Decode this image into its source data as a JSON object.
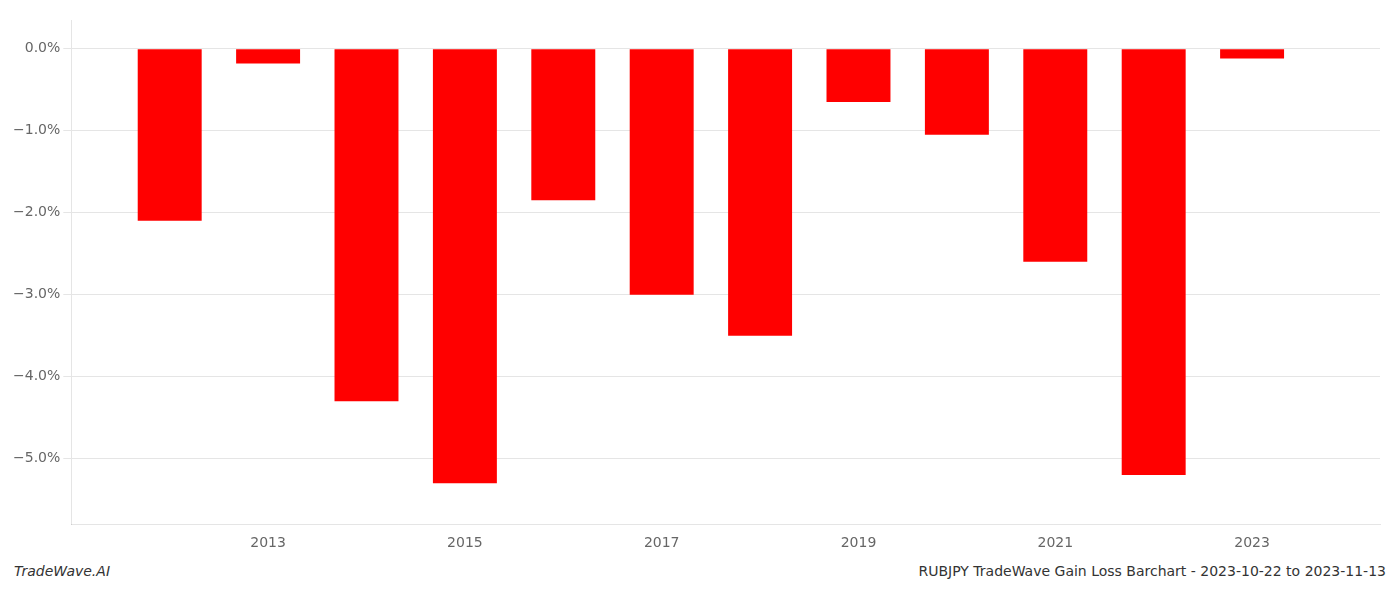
{
  "chart_data": {
    "type": "bar",
    "x": [
      2012,
      2013,
      2014,
      2015,
      2016,
      2017,
      2018,
      2019,
      2020,
      2021,
      2022,
      2023
    ],
    "values": [
      -2.1,
      -0.18,
      -4.3,
      -5.3,
      -1.85,
      -3.0,
      -3.5,
      -0.65,
      -1.05,
      -2.6,
      -5.2,
      -0.12
    ],
    "color": "#ff0000",
    "xlim": [
      2011.0,
      2024.3
    ],
    "ylim": [
      -5.8,
      0.35
    ],
    "xticks": [
      2013,
      2015,
      2017,
      2019,
      2021,
      2023
    ],
    "yticks": [
      {
        "value": 0.0,
        "label": "0.0%"
      },
      {
        "value": -1.0,
        "label": "−1.0%"
      },
      {
        "value": -2.0,
        "label": "−2.0%"
      },
      {
        "value": -3.0,
        "label": "−3.0%"
      },
      {
        "value": -4.0,
        "label": "−4.0%"
      },
      {
        "value": -5.0,
        "label": "−5.0%"
      }
    ],
    "grid": true,
    "annotations": [
      "TradeWave.AI",
      "RUBJPY TradeWave Gain Loss Barchart - 2023-10-22 to 2023-11-13"
    ]
  }
}
